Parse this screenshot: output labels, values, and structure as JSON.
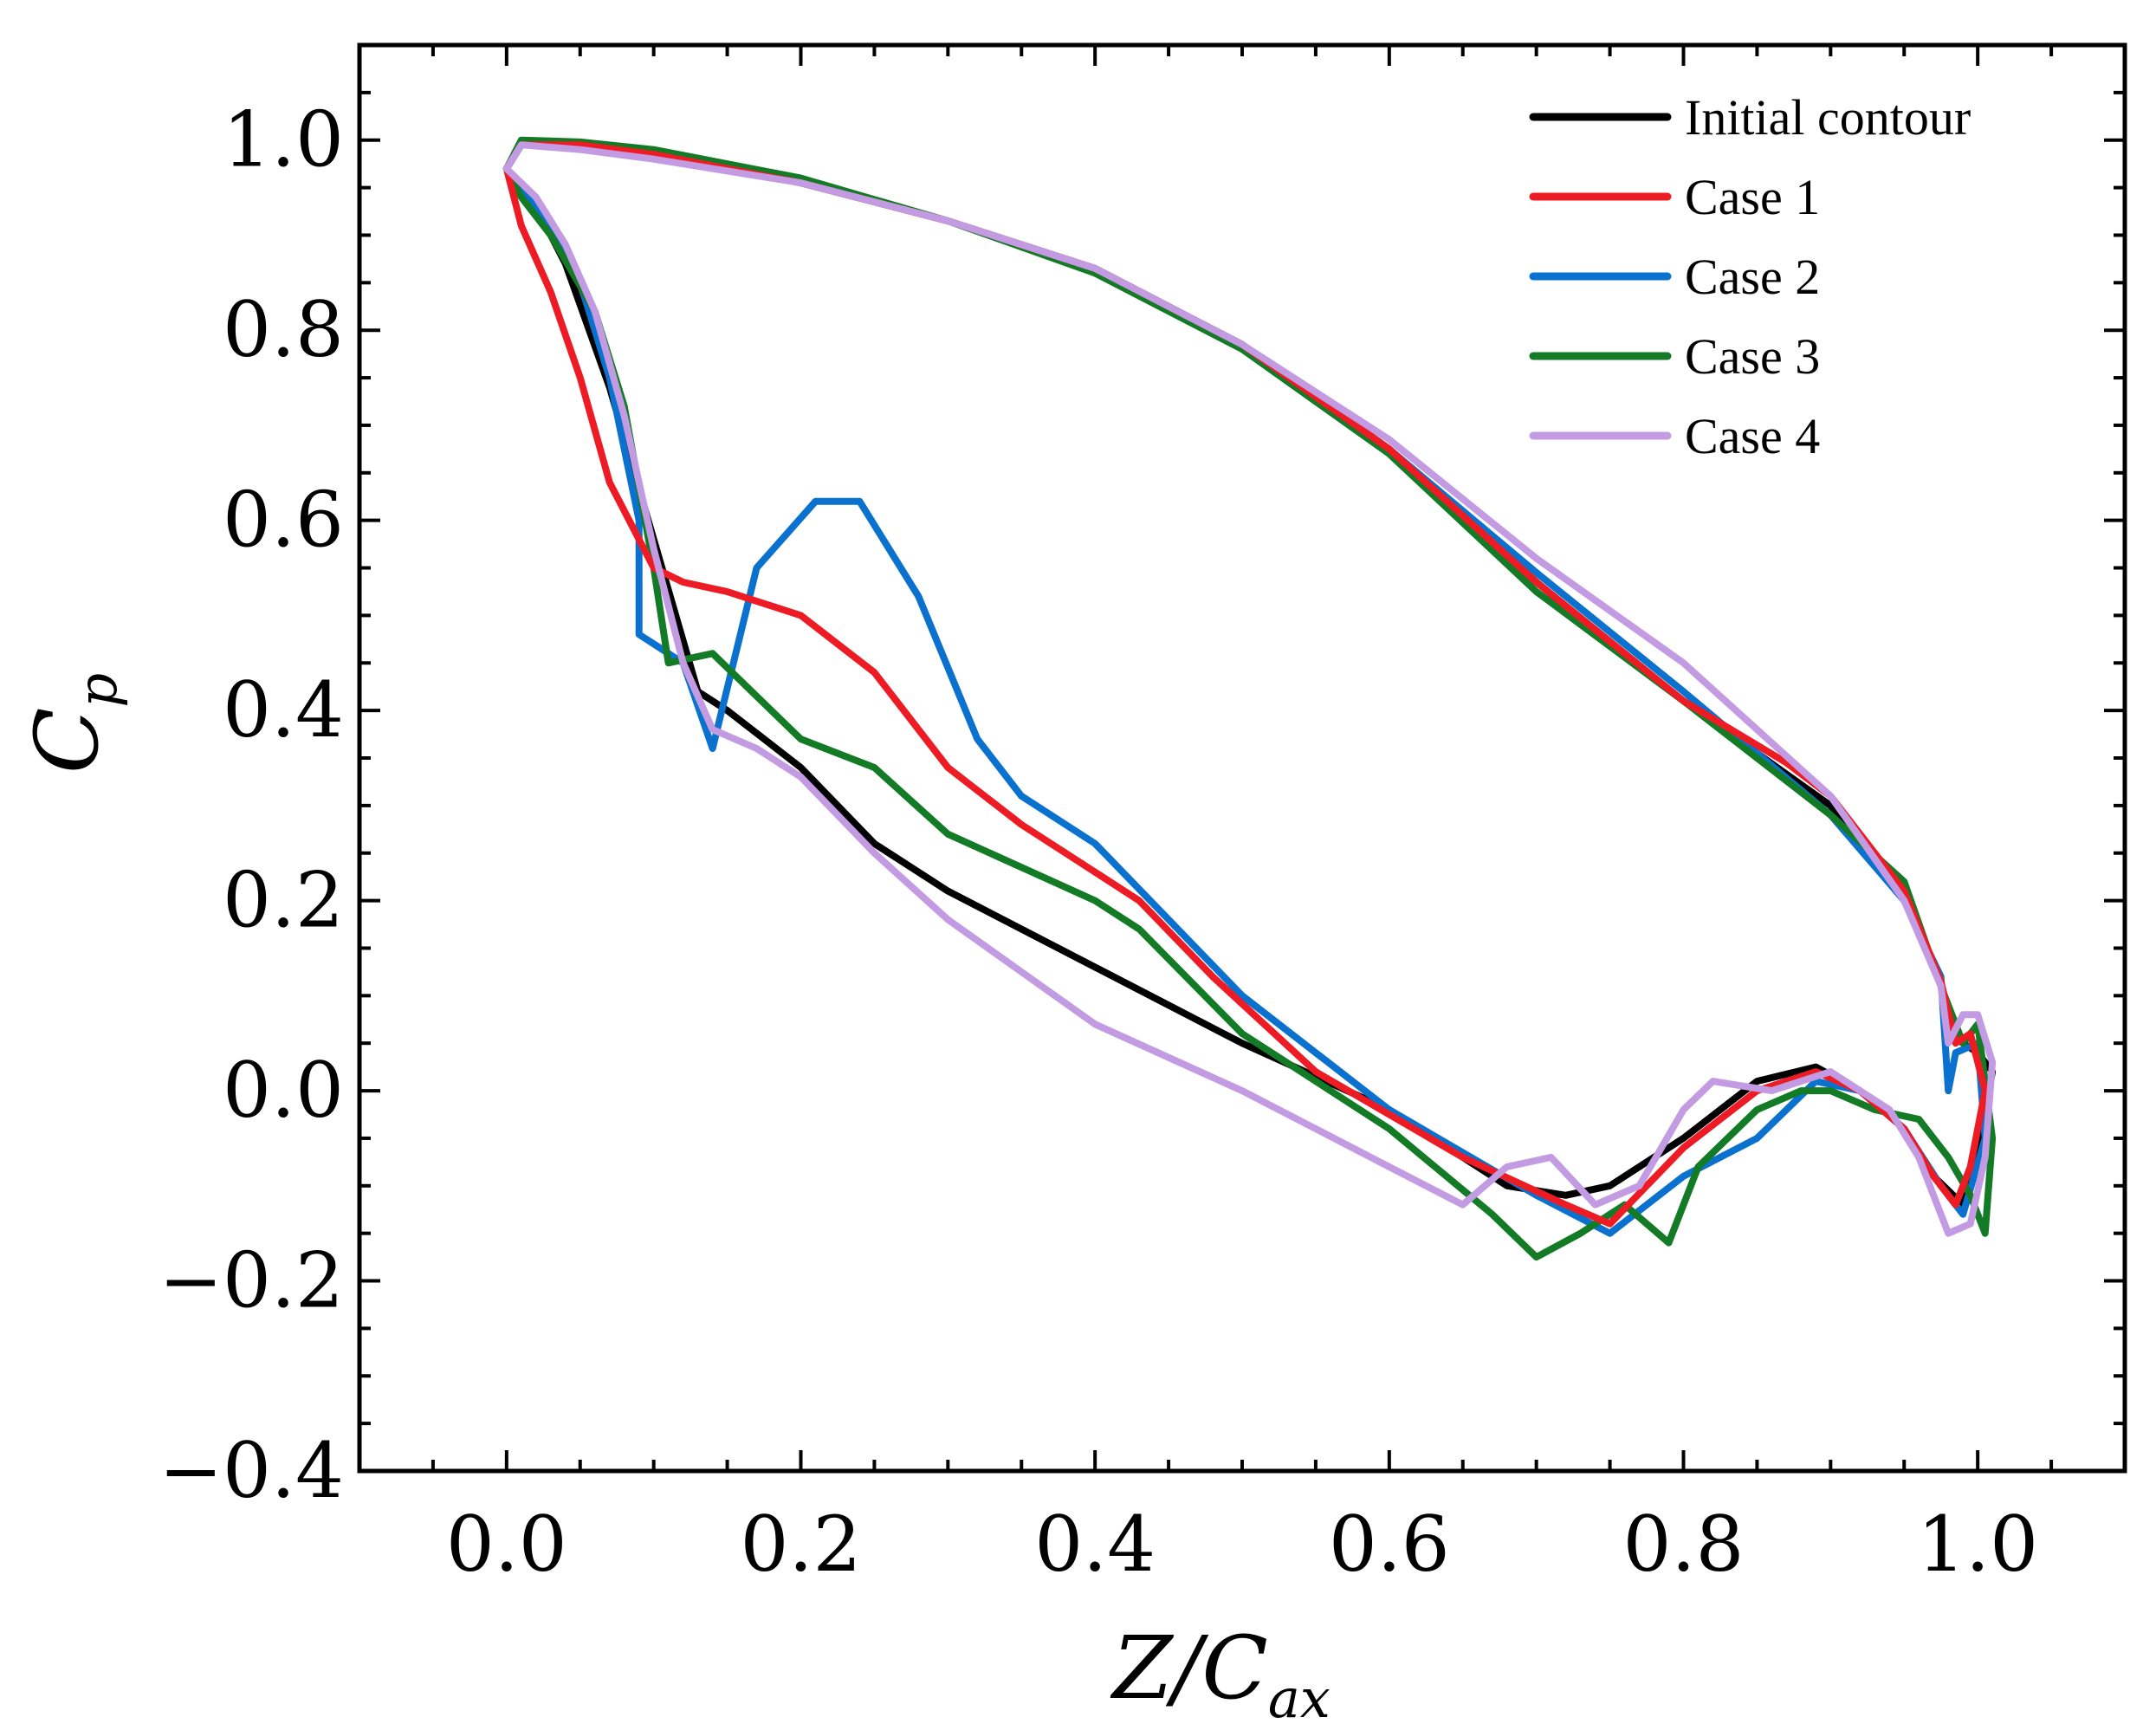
{
  "chart_data": {
    "type": "line",
    "title": "",
    "xlabel": {
      "main": "Z/C",
      "sub": "ax"
    },
    "ylabel": {
      "main": "C",
      "sub": "p"
    },
    "xlim": [
      -0.1,
      1.1
    ],
    "ylim": [
      -0.4,
      1.1
    ],
    "xticks": [
      0.0,
      0.2,
      0.4,
      0.6,
      0.8,
      1.0
    ],
    "xtick_labels": [
      "0.0",
      "0.2",
      "0.4",
      "0.6",
      "0.8",
      "1.0"
    ],
    "yticks": [
      -0.4,
      -0.2,
      0.0,
      0.2,
      0.4,
      0.6,
      0.8,
      1.0
    ],
    "ytick_labels": [
      "−0.4",
      "−0.2",
      "0.0",
      "0.2",
      "0.4",
      "0.6",
      "0.8",
      "1.0"
    ],
    "grid": false,
    "legend_position": "top-right",
    "series": [
      {
        "name": "Initial contour",
        "color": "#000000",
        "points": [
          [
            0.0,
            0.97
          ],
          [
            0.01,
            0.995
          ],
          [
            0.05,
            0.995
          ],
          [
            0.1,
            0.985
          ],
          [
            0.2,
            0.955
          ],
          [
            0.3,
            0.915
          ],
          [
            0.4,
            0.865
          ],
          [
            0.5,
            0.785
          ],
          [
            0.6,
            0.675
          ],
          [
            0.7,
            0.535
          ],
          [
            0.8,
            0.41
          ],
          [
            0.85,
            0.355
          ],
          [
            0.9,
            0.3
          ],
          [
            0.95,
            0.2
          ],
          [
            0.975,
            0.115
          ],
          [
            0.98,
            0.06
          ],
          [
            0.99,
            0.05
          ],
          [
            1.0,
            0.04
          ],
          [
            1.01,
            0.02
          ],
          [
            1.0,
            -0.06
          ],
          [
            0.99,
            -0.12
          ],
          [
            0.97,
            -0.09
          ],
          [
            0.95,
            -0.04
          ],
          [
            0.92,
            0.0
          ],
          [
            0.89,
            0.025
          ],
          [
            0.85,
            0.01
          ],
          [
            0.8,
            -0.05
          ],
          [
            0.75,
            -0.1
          ],
          [
            0.72,
            -0.11
          ],
          [
            0.68,
            -0.1
          ],
          [
            0.6,
            -0.02
          ],
          [
            0.5,
            0.05
          ],
          [
            0.4,
            0.13
          ],
          [
            0.3,
            0.21
          ],
          [
            0.25,
            0.26
          ],
          [
            0.2,
            0.34
          ],
          [
            0.15,
            0.4
          ],
          [
            0.13,
            0.42
          ],
          [
            0.1,
            0.58
          ],
          [
            0.07,
            0.74
          ],
          [
            0.04,
            0.87
          ],
          [
            0.02,
            0.93
          ],
          [
            0.0,
            0.97
          ]
        ]
      },
      {
        "name": "Case 1",
        "color": "#ed1c24",
        "points": [
          [
            0.0,
            0.97
          ],
          [
            0.01,
            0.995
          ],
          [
            0.05,
            0.995
          ],
          [
            0.1,
            0.985
          ],
          [
            0.2,
            0.955
          ],
          [
            0.3,
            0.915
          ],
          [
            0.4,
            0.865
          ],
          [
            0.5,
            0.785
          ],
          [
            0.6,
            0.675
          ],
          [
            0.7,
            0.535
          ],
          [
            0.8,
            0.41
          ],
          [
            0.87,
            0.345
          ],
          [
            0.9,
            0.31
          ],
          [
            0.95,
            0.21
          ],
          [
            0.975,
            0.115
          ],
          [
            0.985,
            0.05
          ],
          [
            0.995,
            0.06
          ],
          [
            1.005,
            0.0
          ],
          [
            0.995,
            -0.08
          ],
          [
            0.985,
            -0.12
          ],
          [
            0.97,
            -0.09
          ],
          [
            0.95,
            -0.04
          ],
          [
            0.92,
            0.0
          ],
          [
            0.89,
            0.02
          ],
          [
            0.85,
            0.0
          ],
          [
            0.8,
            -0.06
          ],
          [
            0.75,
            -0.14
          ],
          [
            0.72,
            -0.12
          ],
          [
            0.65,
            -0.07
          ],
          [
            0.55,
            0.02
          ],
          [
            0.48,
            0.12
          ],
          [
            0.43,
            0.2
          ],
          [
            0.4,
            0.23
          ],
          [
            0.35,
            0.28
          ],
          [
            0.3,
            0.34
          ],
          [
            0.25,
            0.44
          ],
          [
            0.2,
            0.5
          ],
          [
            0.15,
            0.525
          ],
          [
            0.12,
            0.535
          ],
          [
            0.1,
            0.55
          ],
          [
            0.07,
            0.64
          ],
          [
            0.05,
            0.75
          ],
          [
            0.03,
            0.84
          ],
          [
            0.01,
            0.91
          ],
          [
            0.0,
            0.97
          ]
        ]
      },
      {
        "name": "Case 2",
        "color": "#0a72ce",
        "points": [
          [
            0.0,
            0.97
          ],
          [
            0.01,
            0.995
          ],
          [
            0.05,
            0.995
          ],
          [
            0.1,
            0.985
          ],
          [
            0.2,
            0.955
          ],
          [
            0.3,
            0.915
          ],
          [
            0.4,
            0.865
          ],
          [
            0.5,
            0.785
          ],
          [
            0.6,
            0.675
          ],
          [
            0.7,
            0.545
          ],
          [
            0.8,
            0.42
          ],
          [
            0.9,
            0.29
          ],
          [
            0.95,
            0.2
          ],
          [
            0.975,
            0.12
          ],
          [
            0.98,
            0.0
          ],
          [
            0.985,
            0.04
          ],
          [
            1.0,
            0.05
          ],
          [
            1.005,
            -0.05
          ],
          [
            0.99,
            -0.13
          ],
          [
            0.975,
            -0.1
          ],
          [
            0.95,
            -0.04
          ],
          [
            0.92,
            0.0
          ],
          [
            0.89,
            0.01
          ],
          [
            0.85,
            -0.05
          ],
          [
            0.8,
            -0.09
          ],
          [
            0.75,
            -0.15
          ],
          [
            0.7,
            -0.11
          ],
          [
            0.6,
            -0.02
          ],
          [
            0.5,
            0.1
          ],
          [
            0.45,
            0.18
          ],
          [
            0.4,
            0.26
          ],
          [
            0.35,
            0.31
          ],
          [
            0.32,
            0.37
          ],
          [
            0.28,
            0.52
          ],
          [
            0.24,
            0.62
          ],
          [
            0.21,
            0.62
          ],
          [
            0.17,
            0.55
          ],
          [
            0.14,
            0.36
          ],
          [
            0.12,
            0.45
          ],
          [
            0.09,
            0.48
          ],
          [
            0.09,
            0.6
          ],
          [
            0.07,
            0.75
          ],
          [
            0.05,
            0.85
          ],
          [
            0.03,
            0.91
          ],
          [
            0.01,
            0.95
          ],
          [
            0.0,
            0.97
          ]
        ]
      },
      {
        "name": "Case 3",
        "color": "#137b25",
        "points": [
          [
            0.0,
            0.97
          ],
          [
            0.01,
            1.0
          ],
          [
            0.05,
            0.998
          ],
          [
            0.1,
            0.99
          ],
          [
            0.2,
            0.96
          ],
          [
            0.3,
            0.915
          ],
          [
            0.4,
            0.86
          ],
          [
            0.5,
            0.78
          ],
          [
            0.6,
            0.67
          ],
          [
            0.7,
            0.525
          ],
          [
            0.8,
            0.41
          ],
          [
            0.9,
            0.29
          ],
          [
            0.95,
            0.22
          ],
          [
            0.975,
            0.11
          ],
          [
            0.99,
            0.05
          ],
          [
            1.0,
            0.07
          ],
          [
            1.01,
            -0.05
          ],
          [
            1.005,
            -0.15
          ],
          [
            0.995,
            -0.11
          ],
          [
            0.98,
            -0.07
          ],
          [
            0.96,
            -0.03
          ],
          [
            0.93,
            -0.02
          ],
          [
            0.9,
            0.0
          ],
          [
            0.88,
            0.0
          ],
          [
            0.85,
            -0.02
          ],
          [
            0.81,
            -0.08
          ],
          [
            0.79,
            -0.16
          ],
          [
            0.76,
            -0.12
          ],
          [
            0.73,
            -0.15
          ],
          [
            0.7,
            -0.175
          ],
          [
            0.67,
            -0.13
          ],
          [
            0.6,
            -0.04
          ],
          [
            0.5,
            0.06
          ],
          [
            0.43,
            0.17
          ],
          [
            0.4,
            0.2
          ],
          [
            0.3,
            0.27
          ],
          [
            0.25,
            0.34
          ],
          [
            0.2,
            0.37
          ],
          [
            0.14,
            0.46
          ],
          [
            0.11,
            0.45
          ],
          [
            0.1,
            0.55
          ],
          [
            0.08,
            0.72
          ],
          [
            0.06,
            0.82
          ],
          [
            0.03,
            0.9
          ],
          [
            0.01,
            0.94
          ],
          [
            0.0,
            0.97
          ]
        ]
      },
      {
        "name": "Case 4",
        "color": "#c39be3",
        "points": [
          [
            0.0,
            0.97
          ],
          [
            0.01,
            0.995
          ],
          [
            0.05,
            0.99
          ],
          [
            0.1,
            0.98
          ],
          [
            0.2,
            0.955
          ],
          [
            0.3,
            0.915
          ],
          [
            0.4,
            0.865
          ],
          [
            0.5,
            0.785
          ],
          [
            0.6,
            0.685
          ],
          [
            0.7,
            0.56
          ],
          [
            0.8,
            0.45
          ],
          [
            0.9,
            0.31
          ],
          [
            0.95,
            0.2
          ],
          [
            0.975,
            0.11
          ],
          [
            0.98,
            0.05
          ],
          [
            0.99,
            0.08
          ],
          [
            1.0,
            0.08
          ],
          [
            1.01,
            0.03
          ],
          [
            1.005,
            -0.07
          ],
          [
            0.995,
            -0.14
          ],
          [
            0.98,
            -0.15
          ],
          [
            0.96,
            -0.07
          ],
          [
            0.94,
            -0.02
          ],
          [
            0.9,
            0.02
          ],
          [
            0.86,
            0.0
          ],
          [
            0.82,
            0.01
          ],
          [
            0.8,
            -0.02
          ],
          [
            0.77,
            -0.1
          ],
          [
            0.74,
            -0.12
          ],
          [
            0.71,
            -0.07
          ],
          [
            0.68,
            -0.08
          ],
          [
            0.65,
            -0.12
          ],
          [
            0.6,
            -0.08
          ],
          [
            0.55,
            -0.04
          ],
          [
            0.5,
            0.0
          ],
          [
            0.4,
            0.07
          ],
          [
            0.3,
            0.18
          ],
          [
            0.25,
            0.25
          ],
          [
            0.2,
            0.33
          ],
          [
            0.17,
            0.36
          ],
          [
            0.14,
            0.38
          ],
          [
            0.12,
            0.45
          ],
          [
            0.1,
            0.57
          ],
          [
            0.08,
            0.71
          ],
          [
            0.06,
            0.82
          ],
          [
            0.04,
            0.89
          ],
          [
            0.02,
            0.94
          ],
          [
            0.0,
            0.97
          ]
        ]
      }
    ]
  }
}
